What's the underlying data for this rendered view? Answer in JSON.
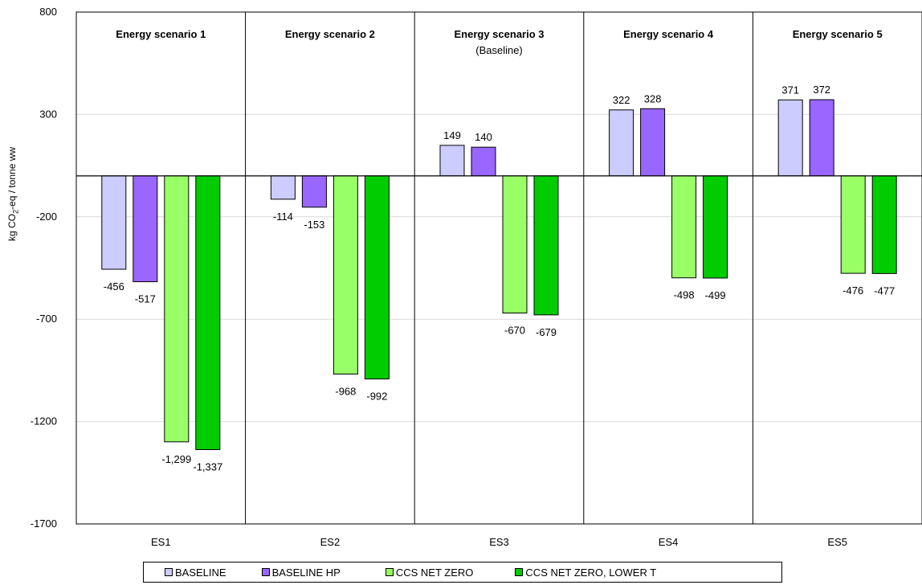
{
  "chart_data": {
    "type": "bar",
    "ylabel_prefix": "kg CO",
    "ylabel_sub": "2",
    "ylabel_suffix": "-eq / tonne ww",
    "ylim": [
      -1700,
      800
    ],
    "yticks": [
      "800",
      "300",
      "-200",
      "-700",
      "-1200",
      "-1700"
    ],
    "ytick_values": [
      800,
      300,
      -200,
      -700,
      -1200,
      -1700
    ],
    "grid": true,
    "legend_position": "bottom",
    "categories": [
      "ES1",
      "ES2",
      "ES3",
      "ES4",
      "ES5"
    ],
    "panel_titles": [
      "Energy scenario 1",
      "Energy scenario 2",
      "Energy scenario 3",
      "Energy scenario 4",
      "Energy scenario 5"
    ],
    "panel_subtitles": [
      "",
      "",
      "(Baseline)",
      "",
      ""
    ],
    "series": [
      {
        "name": "BASELINE",
        "color": "#ccccff",
        "values": [
          -456,
          -114,
          149,
          322,
          371
        ],
        "labels": [
          "-456",
          "-114",
          "149",
          "322",
          "371"
        ]
      },
      {
        "name": "BASELINE HP",
        "color": "#9966ff",
        "values": [
          -517,
          -153,
          140,
          328,
          372
        ],
        "labels": [
          "-517",
          "-153",
          "140",
          "328",
          "372"
        ]
      },
      {
        "name": "CCS NET ZERO",
        "color": "#99ff66",
        "values": [
          -1299,
          -968,
          -670,
          -498,
          -476
        ],
        "labels": [
          "-1,299",
          "-968",
          "-670",
          "-498",
          "-476"
        ]
      },
      {
        "name": "CCS NET ZERO, LOWER T",
        "color": "#00cc00",
        "values": [
          -1337,
          -992,
          -679,
          -499,
          -477
        ],
        "labels": [
          "-1,337",
          "-992",
          "-679",
          "-499",
          "-477"
        ]
      }
    ]
  }
}
